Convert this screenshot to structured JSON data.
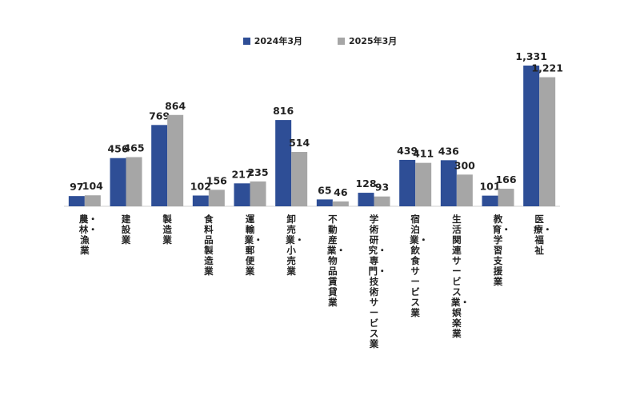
{
  "chart_data": {
    "type": "bar",
    "title": "",
    "xlabel": "",
    "ylabel": "",
    "ylim": [
      0,
      1400
    ],
    "grid": false,
    "legend_position": "top-center",
    "categories": [
      "農・林・漁業",
      "建設業",
      "製造業",
      "食料品製造業",
      "運輸業・郵便業",
      "卸売業・小売業",
      "不動産業・物品賃貸業",
      "学術研究・専門・技術サービス業",
      "宿泊業・飲食サービス業",
      "生活関連サービス業・娯楽業",
      "教育・学習支援業",
      "医療・福祉"
    ],
    "series": [
      {
        "name": "2024年3月",
        "color": "#2e4e96",
        "values": [
          97,
          456,
          769,
          102,
          217,
          816,
          65,
          128,
          439,
          436,
          101,
          1331
        ],
        "labels": [
          "97",
          "456",
          "769",
          "102",
          "217",
          "816",
          "65",
          "128",
          "439",
          "436",
          "101",
          "1,331"
        ]
      },
      {
        "name": "2025年3月",
        "color": "#a6a6a6",
        "values": [
          104,
          465,
          864,
          156,
          235,
          514,
          46,
          93,
          411,
          300,
          166,
          1221
        ],
        "labels": [
          "104",
          "465",
          "864",
          "156",
          "235",
          "514",
          "46",
          "93",
          "411",
          "300",
          "166",
          "1,221"
        ]
      }
    ]
  }
}
